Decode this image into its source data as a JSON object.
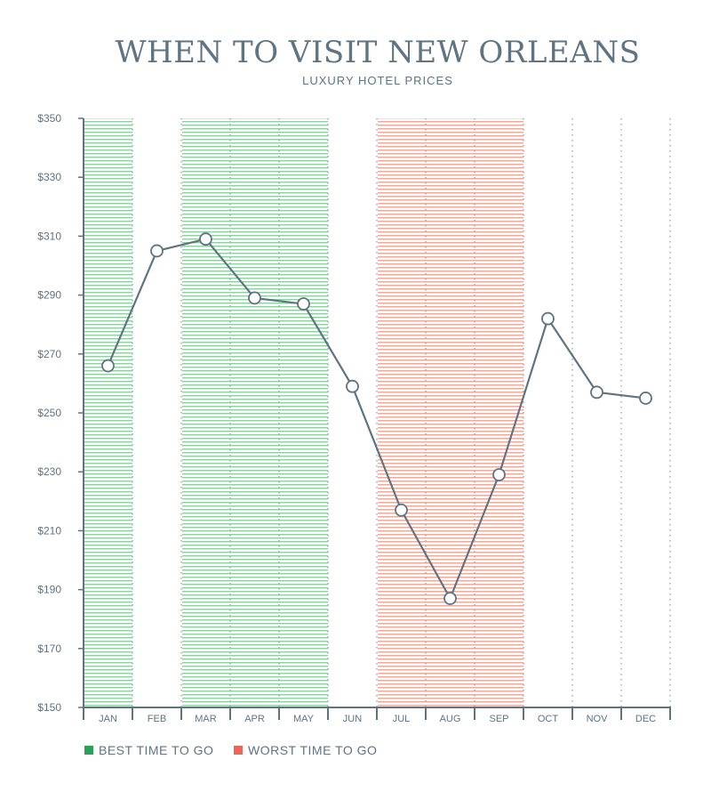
{
  "chart_data": {
    "type": "line",
    "title": "WHEN TO VISIT NEW ORLEANS",
    "subtitle": "LUXURY HOTEL PRICES",
    "categories": [
      "JAN",
      "FEB",
      "MAR",
      "APR",
      "MAY",
      "JUN",
      "JUL",
      "AUG",
      "SEP",
      "OCT",
      "NOV",
      "DEC"
    ],
    "series": [
      {
        "values": [
          266,
          305,
          309,
          289,
          287,
          259,
          217,
          187,
          229,
          282,
          257,
          255
        ]
      }
    ],
    "ylim": [
      150,
      350
    ],
    "yticks": [
      150,
      170,
      190,
      210,
      230,
      250,
      270,
      290,
      310,
      330,
      350
    ],
    "ytick_labels": [
      "$150",
      "$170",
      "$190",
      "$210",
      "$230",
      "$250",
      "$270",
      "$290",
      "$310",
      "$330",
      "$350"
    ],
    "bands": [
      {
        "type": "best",
        "months": [
          "JAN"
        ]
      },
      {
        "type": "best",
        "months": [
          "MAR",
          "APR",
          "MAY"
        ]
      },
      {
        "type": "worst",
        "months": [
          "JUL",
          "AUG",
          "SEP"
        ]
      }
    ],
    "legend": [
      {
        "label": "BEST TIME TO GO",
        "color": "#2e9e5b"
      },
      {
        "label": "WORST TIME TO GO",
        "color": "#e8675a"
      }
    ],
    "colors": {
      "axis": "#5f7380",
      "line": "#5f7380",
      "best_stripe": "#8fcfa0",
      "worst_stripe": "#f2a898",
      "grid_dots": "#9aa8b2"
    }
  }
}
